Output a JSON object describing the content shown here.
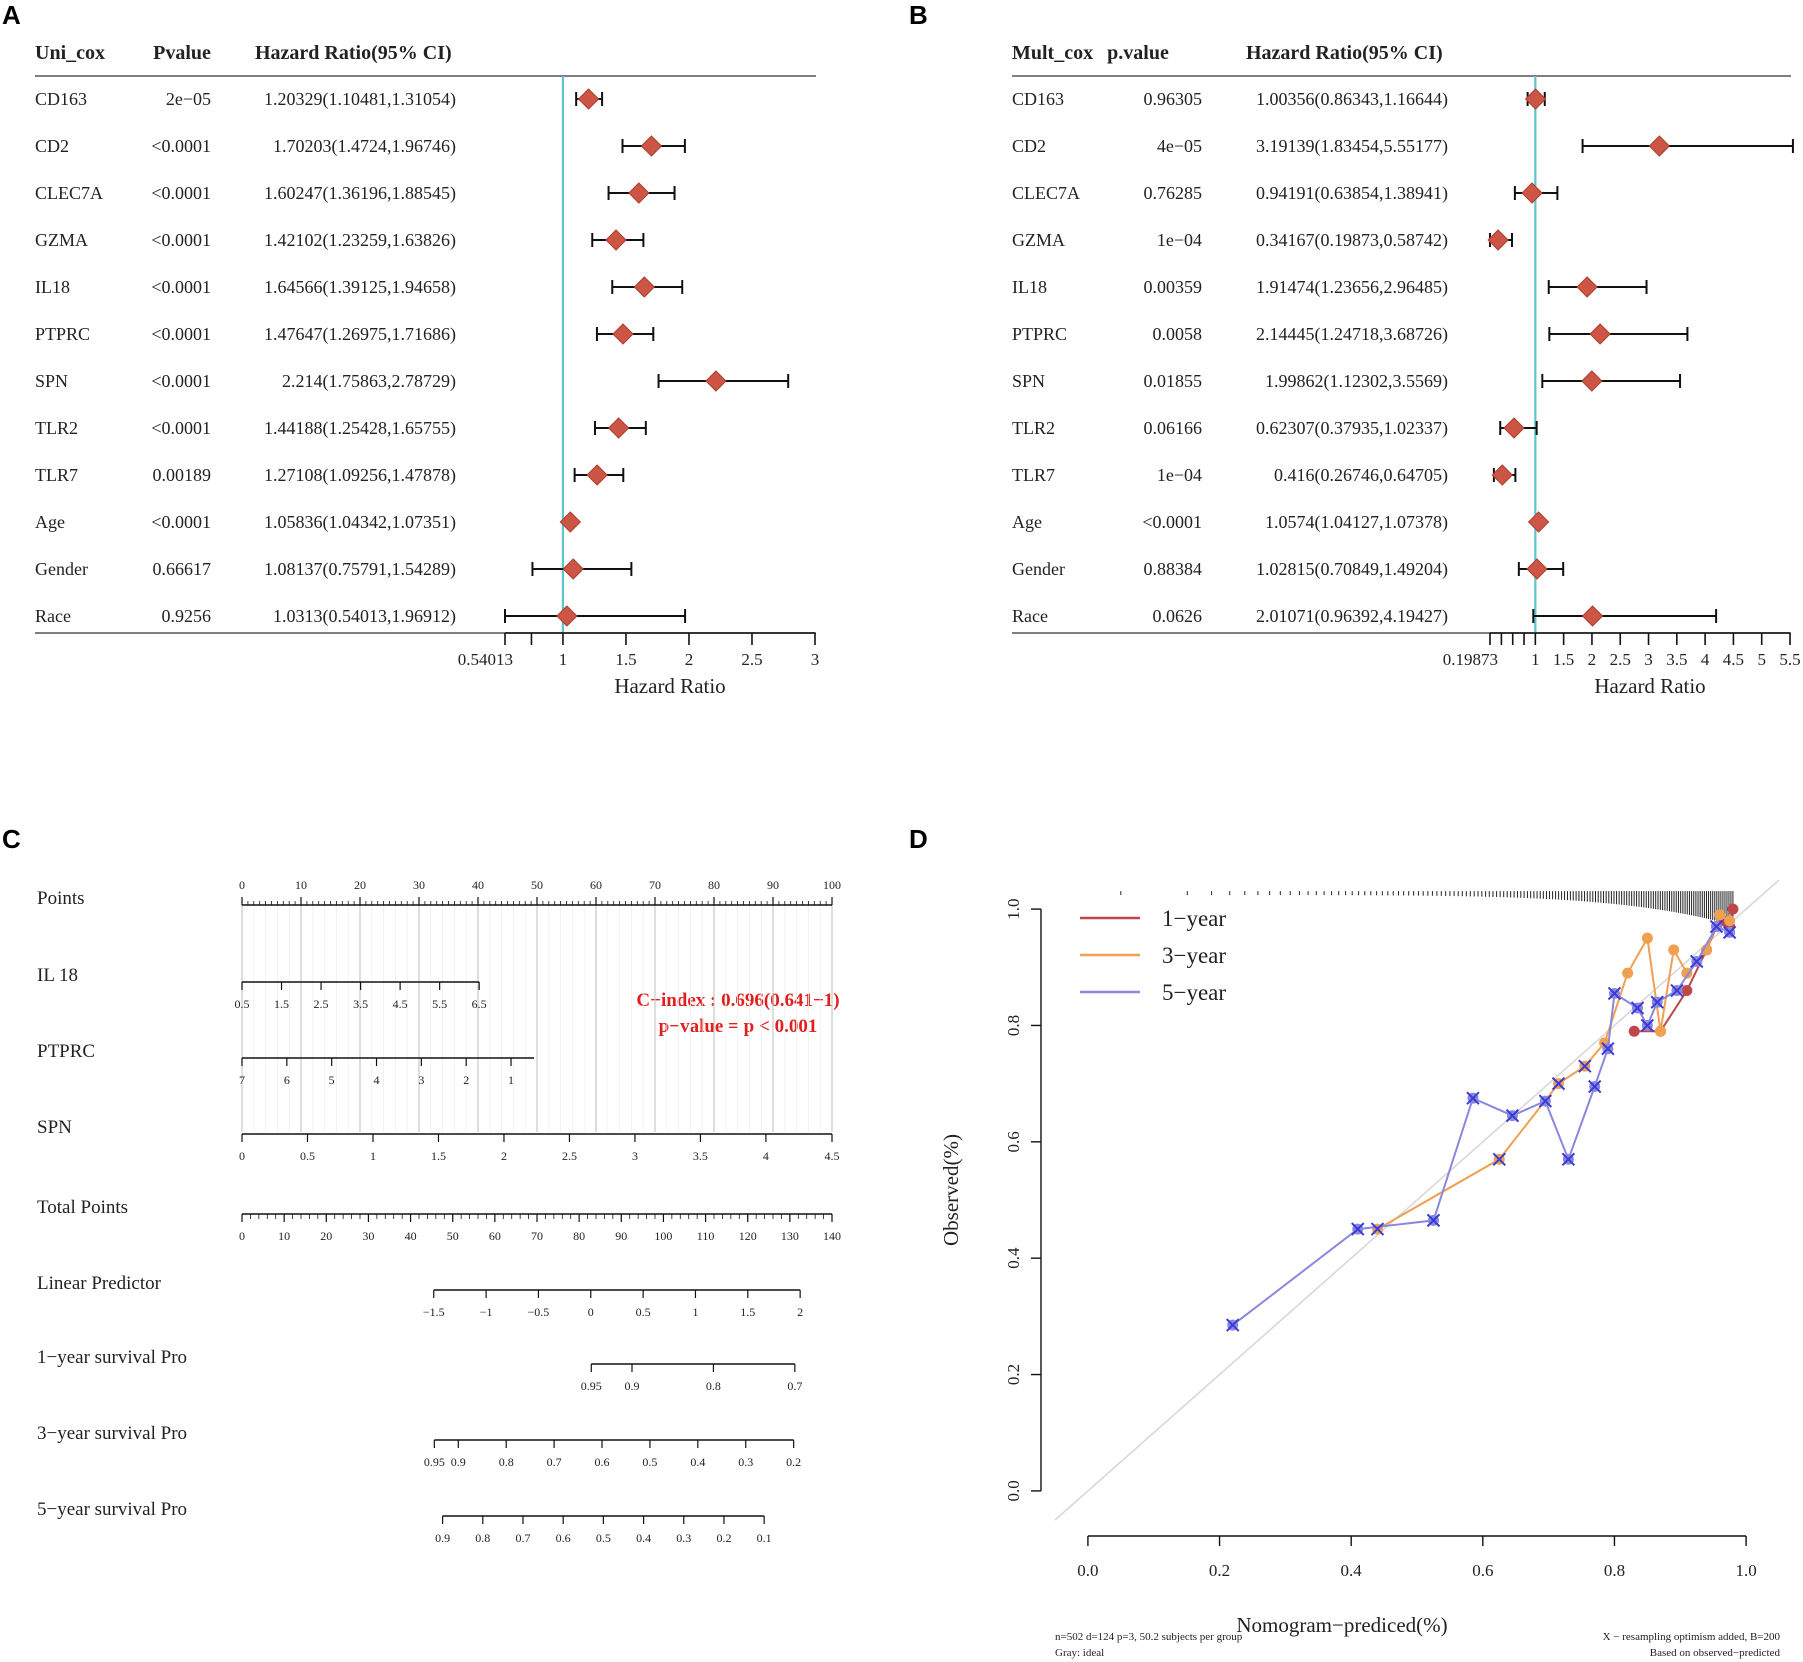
{
  "panel_labels": [
    "A",
    "B",
    "C",
    "D"
  ],
  "chart_data": [
    {
      "type": "forest",
      "panel": "A",
      "headers": [
        "Uni_cox",
        "Pvalue",
        "Hazard Ratio(95% CI)"
      ],
      "xlabel": "Hazard Ratio",
      "ref_line": 1,
      "xlim": [
        0.54013,
        3
      ],
      "tick_labels": [
        "0.54013",
        "1",
        "1.5",
        "2",
        "2.5",
        "3"
      ],
      "rows": [
        {
          "label": "CD163",
          "p": "2e−05",
          "hr_text": "1.20329(1.10481,1.31054)",
          "hr": 1.20329,
          "lo": 1.10481,
          "hi": 1.31054
        },
        {
          "label": "CD2",
          "p": "<0.0001",
          "hr_text": "1.70203(1.4724,1.96746)",
          "hr": 1.70203,
          "lo": 1.4724,
          "hi": 1.96746
        },
        {
          "label": "CLEC7A",
          "p": "<0.0001",
          "hr_text": "1.60247(1.36196,1.88545)",
          "hr": 1.60247,
          "lo": 1.36196,
          "hi": 1.88545
        },
        {
          "label": "GZMA",
          "p": "<0.0001",
          "hr_text": "1.42102(1.23259,1.63826)",
          "hr": 1.42102,
          "lo": 1.23259,
          "hi": 1.63826
        },
        {
          "label": "IL18",
          "p": "<0.0001",
          "hr_text": "1.64566(1.39125,1.94658)",
          "hr": 1.64566,
          "lo": 1.39125,
          "hi": 1.94658
        },
        {
          "label": "PTPRC",
          "p": "<0.0001",
          "hr_text": "1.47647(1.26975,1.71686)",
          "hr": 1.47647,
          "lo": 1.26975,
          "hi": 1.71686
        },
        {
          "label": "SPN",
          "p": "<0.0001",
          "hr_text": "2.214(1.75863,2.78729)",
          "hr": 2.214,
          "lo": 1.75863,
          "hi": 2.78729
        },
        {
          "label": "TLR2",
          "p": "<0.0001",
          "hr_text": "1.44188(1.25428,1.65755)",
          "hr": 1.44188,
          "lo": 1.25428,
          "hi": 1.65755
        },
        {
          "label": "TLR7",
          "p": "0.00189",
          "hr_text": "1.27108(1.09256,1.47878)",
          "hr": 1.27108,
          "lo": 1.09256,
          "hi": 1.47878
        },
        {
          "label": "Age",
          "p": "<0.0001",
          "hr_text": "1.05836(1.04342,1.07351)",
          "hr": 1.05836,
          "lo": 1.04342,
          "hi": 1.07351
        },
        {
          "label": "Gender",
          "p": "0.66617",
          "hr_text": "1.08137(0.75791,1.54289)",
          "hr": 1.08137,
          "lo": 0.75791,
          "hi": 1.54289
        },
        {
          "label": "Race",
          "p": "0.9256",
          "hr_text": "1.0313(0.54013,1.96912)",
          "hr": 1.0313,
          "lo": 0.54013,
          "hi": 1.96912
        }
      ],
      "colors": {
        "diamond": "#cd5545",
        "ref": "#5ec5cf"
      }
    },
    {
      "type": "forest",
      "panel": "B",
      "headers": [
        "Mult_cox",
        "p.value",
        "Hazard Ratio(95% CI)"
      ],
      "xlabel": "Hazard Ratio",
      "ref_line": 1,
      "xlim": [
        0.19873,
        5.5
      ],
      "tick_labels": [
        "0.19873",
        "1",
        "1.5",
        "2",
        "2.5",
        "3",
        "3.5",
        "4",
        "4.5",
        "5",
        "5.5"
      ],
      "rows": [
        {
          "label": "CD163",
          "p": "0.96305",
          "hr_text": "1.00356(0.86343,1.16644)",
          "hr": 1.00356,
          "lo": 0.86343,
          "hi": 1.16644
        },
        {
          "label": "CD2",
          "p": "4e−05",
          "hr_text": "3.19139(1.83454,5.55177)",
          "hr": 3.19139,
          "lo": 1.83454,
          "hi": 5.55177
        },
        {
          "label": "CLEC7A",
          "p": "0.76285",
          "hr_text": "0.94191(0.63854,1.38941)",
          "hr": 0.94191,
          "lo": 0.63854,
          "hi": 1.38941
        },
        {
          "label": "GZMA",
          "p": "1e−04",
          "hr_text": "0.34167(0.19873,0.58742)",
          "hr": 0.34167,
          "lo": 0.19873,
          "hi": 0.58742
        },
        {
          "label": "IL18",
          "p": "0.00359",
          "hr_text": "1.91474(1.23656,2.96485)",
          "hr": 1.91474,
          "lo": 1.23656,
          "hi": 2.96485
        },
        {
          "label": "PTPRC",
          "p": "0.0058",
          "hr_text": "2.14445(1.24718,3.68726)",
          "hr": 2.14445,
          "lo": 1.24718,
          "hi": 3.68726
        },
        {
          "label": "SPN",
          "p": "0.01855",
          "hr_text": "1.99862(1.12302,3.5569)",
          "hr": 1.99862,
          "lo": 1.12302,
          "hi": 3.5569
        },
        {
          "label": "TLR2",
          "p": "0.06166",
          "hr_text": "0.62307(0.37935,1.02337)",
          "hr": 0.62307,
          "lo": 0.37935,
          "hi": 1.02337
        },
        {
          "label": "TLR7",
          "p": "1e−04",
          "hr_text": "0.416(0.26746,0.64705)",
          "hr": 0.416,
          "lo": 0.26746,
          "hi": 0.64705
        },
        {
          "label": "Age",
          "p": "<0.0001",
          "hr_text": "1.0574(1.04127,1.07378)",
          "hr": 1.0574,
          "lo": 1.04127,
          "hi": 1.07378
        },
        {
          "label": "Gender",
          "p": "0.88384",
          "hr_text": "1.02815(0.70849,1.49204)",
          "hr": 1.02815,
          "lo": 0.70849,
          "hi": 1.49204
        },
        {
          "label": "Race",
          "p": "0.0626",
          "hr_text": "2.01071(0.96392,4.19427)",
          "hr": 2.01071,
          "lo": 0.96392,
          "hi": 4.19427
        }
      ],
      "colors": {
        "diamond": "#cd5545",
        "ref": "#5ec5cf"
      }
    },
    {
      "type": "nomogram",
      "panel": "C",
      "cindex_text": "C−index : 0.696(0.641−1)",
      "pvalue_text": "p−value = p < 0.001",
      "scales": [
        {
          "label": "Points",
          "from": 0,
          "to": 100,
          "ticks": [
            "0",
            "10",
            "20",
            "30",
            "40",
            "50",
            "60",
            "70",
            "80",
            "90",
            "100"
          ],
          "tick_vals": [
            0,
            10,
            20,
            30,
            40,
            50,
            60,
            70,
            80,
            90,
            100
          ],
          "label_pos": "above"
        },
        {
          "label": "IL 18",
          "from": 0,
          "to": 100,
          "ticks": [
            "0.5",
            "1.5",
            "2.5",
            "3.5",
            "4.5",
            "5.5",
            "6.5"
          ],
          "tick_vals": [
            0,
            6.7,
            13.4,
            20.1,
            26.8,
            33.5,
            40.2
          ],
          "label_pos": "below"
        },
        {
          "label": "PTPRC",
          "from": 0,
          "to": 100,
          "ticks": [
            "7",
            "6",
            "5",
            "4",
            "3",
            "2",
            "1"
          ],
          "tick_vals": [
            0,
            7.6,
            15.2,
            22.8,
            30.4,
            38,
            45.6
          ],
          "label_pos": "below"
        },
        {
          "label": "SPN",
          "from": 0,
          "to": 100,
          "ticks": [
            "0",
            "0.5",
            "1",
            "1.5",
            "2",
            "2.5",
            "3",
            "3.5",
            "4",
            "4.5"
          ],
          "tick_vals": [
            0,
            11.1,
            22.2,
            33.3,
            44.4,
            55.5,
            66.6,
            77.7,
            88.8,
            100
          ],
          "label_pos": "below"
        },
        {
          "label": "Total Points",
          "from": 0,
          "to": 140,
          "ticks": [
            "0",
            "10",
            "20",
            "30",
            "40",
            "50",
            "60",
            "70",
            "80",
            "90",
            "100",
            "110",
            "120",
            "130",
            "140"
          ],
          "tick_vals": [
            0,
            10,
            20,
            30,
            40,
            50,
            60,
            70,
            80,
            90,
            100,
            110,
            120,
            130,
            140
          ],
          "label_pos": "below"
        },
        {
          "label": "Linear Predictor",
          "from": -1.5,
          "to": 2,
          "ticks": [
            "−1.5",
            "−1",
            "−0.5",
            "0",
            "0.5",
            "1",
            "1.5",
            "2"
          ],
          "tick_vals": [
            -1.5,
            -1,
            -0.5,
            0,
            0.5,
            1,
            1.5,
            2
          ],
          "label_pos": "below"
        },
        {
          "label": "1−year survival Pro",
          "from": 0.95,
          "to": 0.7,
          "ticks": [
            "0.95",
            "0.9",
            "0.8",
            "0.7"
          ],
          "tick_vals": [
            0.95,
            0.9,
            0.8,
            0.7
          ],
          "label_pos": "below"
        },
        {
          "label": "3−year survival Pro",
          "from": 0.95,
          "to": 0.2,
          "ticks": [
            "0.95",
            "0.9",
            "0.8",
            "0.7",
            "0.6",
            "0.5",
            "0.4",
            "0.3",
            "0.2"
          ],
          "tick_vals": [
            0.95,
            0.9,
            0.8,
            0.7,
            0.6,
            0.5,
            0.4,
            0.3,
            0.2
          ],
          "label_pos": "below"
        },
        {
          "label": "5−year survival Pro",
          "from": 0.9,
          "to": 0.1,
          "ticks": [
            "0.9",
            "0.8",
            "0.7",
            "0.6",
            "0.5",
            "0.4",
            "0.3",
            "0.2",
            "0.1"
          ],
          "tick_vals": [
            0.9,
            0.8,
            0.7,
            0.6,
            0.5,
            0.4,
            0.3,
            0.2,
            0.1
          ],
          "label_pos": "below"
        }
      ]
    },
    {
      "type": "calibration",
      "panel": "D",
      "xlabel": "Nomogram−prediced(%)",
      "ylabel": "Observed(%)",
      "xlim": [
        -0.05,
        1.05
      ],
      "ylim": [
        -0.05,
        1.05
      ],
      "xticks": [
        "0.0",
        "0.2",
        "0.4",
        "0.6",
        "0.8",
        "1.0"
      ],
      "yticks": [
        "0.0",
        "0.2",
        "0.4",
        "0.6",
        "0.8",
        "1.0"
      ],
      "footnote_left": [
        "n=502 d=124 p=3, 50.2 subjects per group",
        "Gray: ideal"
      ],
      "footnote_right": [
        "X − resampling optimism added, B=200",
        "Based on observed−predicted"
      ],
      "series": [
        {
          "name": "1−year",
          "color": "#c0464a",
          "x": [
            0.83,
            0.87,
            0.91,
            0.94,
            0.955,
            0.965,
            0.975,
            0.98
          ],
          "y": [
            0.79,
            0.79,
            0.86,
            0.93,
            0.97,
            0.98,
            0.97,
            1.0
          ]
        },
        {
          "name": "3−year",
          "color": "#f0a050",
          "x": [
            0.44,
            0.625,
            0.715,
            0.755,
            0.785,
            0.82,
            0.85,
            0.87,
            0.89,
            0.91,
            0.94,
            0.96,
            0.975
          ],
          "y": [
            0.45,
            0.57,
            0.7,
            0.73,
            0.77,
            0.89,
            0.95,
            0.79,
            0.93,
            0.89,
            0.93,
            0.99,
            0.98
          ]
        },
        {
          "name": "5−year",
          "color": "#8a88dd",
          "x": [
            0.22,
            0.41,
            0.525,
            0.585,
            0.645,
            0.695,
            0.73,
            0.77,
            0.79,
            0.8,
            0.835,
            0.85,
            0.865,
            0.895,
            0.925,
            0.955,
            0.975
          ],
          "y": [
            0.285,
            0.45,
            0.465,
            0.675,
            0.645,
            0.67,
            0.57,
            0.695,
            0.76,
            0.855,
            0.83,
            0.8,
            0.84,
            0.86,
            0.91,
            0.97,
            0.96
          ]
        }
      ],
      "colors": {
        "ideal": "#d8d8d8",
        "x_marker": "#3a3ad8",
        "rug": "#222222"
      }
    }
  ]
}
